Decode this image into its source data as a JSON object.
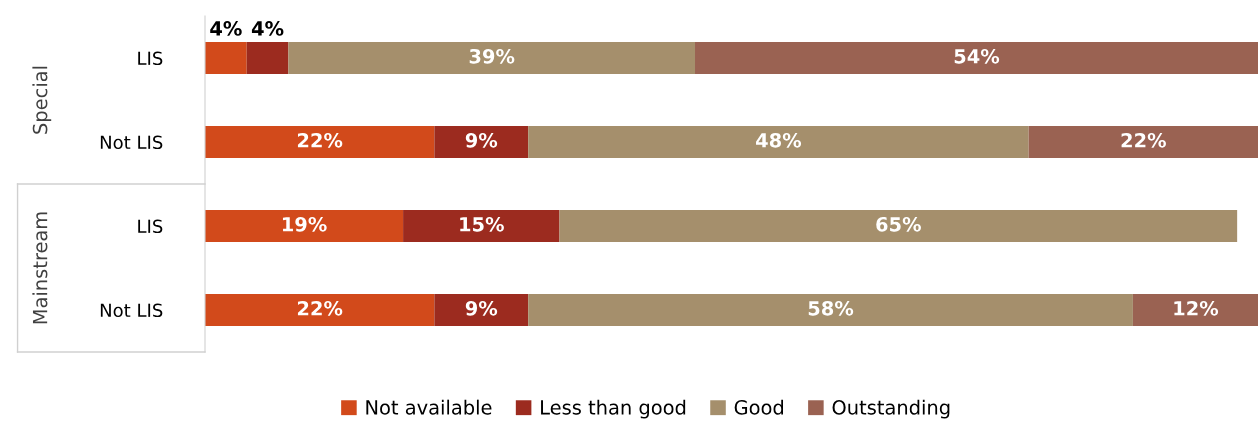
{
  "chart_data": {
    "type": "bar",
    "orientation": "horizontal",
    "stacked": true,
    "categories": [
      "LIS",
      "Not LIS",
      "LIS",
      "Not LIS"
    ],
    "annotations": [
      "Special",
      "Mainstream"
    ],
    "xlim": [
      0,
      101
    ],
    "tick_labels": "y",
    "grid": false,
    "legend": "bottom",
    "series": [
      {
        "name": "Not available",
        "color": "#d24a1b",
        "values": [
          4,
          22,
          19,
          22
        ],
        "value_labels": [
          "4%",
          "22%",
          "19%",
          "22%"
        ]
      },
      {
        "name": "Less than good",
        "color": "#9c2b1f",
        "values": [
          4,
          9,
          15,
          9
        ],
        "value_labels": [
          "4%",
          "9%",
          "15%",
          "9%"
        ]
      },
      {
        "name": "Good",
        "color": "#a58f6c",
        "values": [
          39,
          48,
          65,
          58
        ],
        "value_labels": [
          "39%",
          "48%",
          "65%",
          "58%"
        ]
      },
      {
        "name": "Outstanding",
        "color": "#9a6252",
        "values": [
          54,
          22,
          null,
          12
        ],
        "value_labels": [
          "54%",
          "22%",
          null,
          "12%"
        ]
      }
    ]
  }
}
